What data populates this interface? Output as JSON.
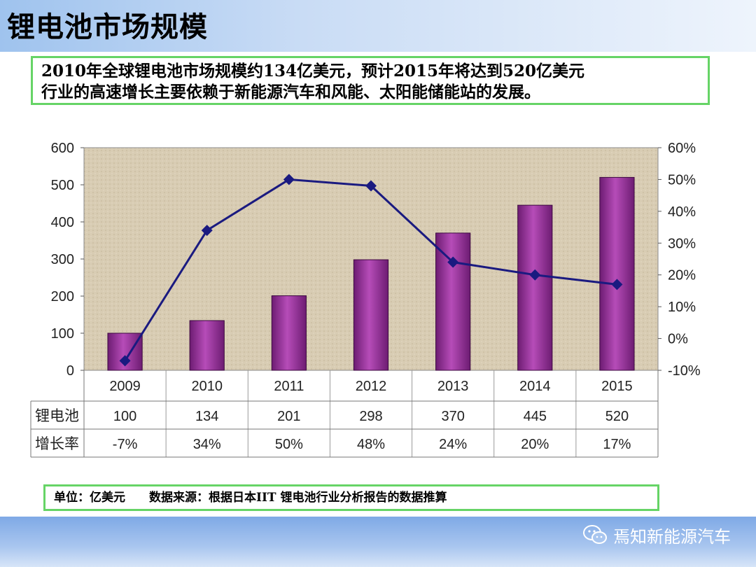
{
  "slide": {
    "title": "锂电池市场规模",
    "summary_lines": [
      "2010年全球锂电池市场规模约134亿美元，预计2015年将达到520亿美元",
      "行业的高速增长主要依赖于新能源汽车和风能、太阳能储能站的发展。"
    ],
    "source_unit": "单位：亿美元",
    "source_text": "数据来源：根据日本IIT 锂电池行业分析报告的数据推算",
    "brand": "焉知新能源汽车"
  },
  "chart_data": {
    "type": "bar",
    "categories": [
      "2009",
      "2010",
      "2011",
      "2012",
      "2013",
      "2014",
      "2015"
    ],
    "series": [
      {
        "name": "锂电池",
        "type": "bar",
        "axis": "left",
        "values": [
          100,
          134,
          201,
          298,
          370,
          445,
          520
        ],
        "color": "#8b2a8e"
      },
      {
        "name": "增长率",
        "type": "line",
        "axis": "right",
        "values": [
          -7,
          34,
          50,
          48,
          24,
          20,
          17
        ],
        "color": "#1a1a80"
      }
    ],
    "table_rows": [
      {
        "label": "锂电池",
        "cells": [
          "100",
          "134",
          "201",
          "298",
          "370",
          "445",
          "520"
        ]
      },
      {
        "label": "增长率",
        "cells": [
          "-7%",
          "34%",
          "50%",
          "48%",
          "24%",
          "20%",
          "17%"
        ]
      }
    ],
    "y_left": {
      "ylim": [
        0,
        600
      ],
      "ticks": [
        "0",
        "100",
        "200",
        "300",
        "400",
        "500",
        "600"
      ]
    },
    "y_right": {
      "ylim": [
        -10,
        60
      ],
      "ticks": [
        "-10%",
        "0%",
        "10%",
        "20%",
        "30%",
        "40%",
        "50%",
        "60%"
      ]
    },
    "plot_background": "#d8ccb3",
    "grid": false
  }
}
